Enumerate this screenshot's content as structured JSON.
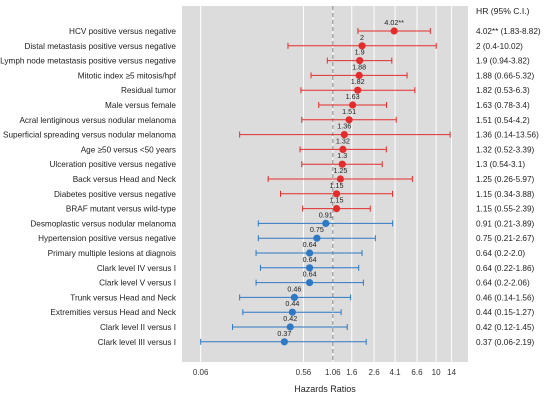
{
  "chart_data": {
    "type": "forest",
    "xlabel": "Hazards Ratios",
    "hr_header": "HR (95% C.I.)",
    "x_scale": "log",
    "xlim": [
      0.04,
      20
    ],
    "x_ticks": [
      0.06,
      0.56,
      1.06,
      1.6,
      2.6,
      4.1,
      6.6,
      10,
      14
    ],
    "x_tick_labels": [
      "0.06",
      "0.56",
      "1.06",
      "1.6",
      "2.6",
      "4.1",
      "6.6",
      "10",
      "14"
    ],
    "reference_line": 1.06,
    "grid": true,
    "colors": {
      "risk": "#e32c2c",
      "protective": "#2e78c4",
      "background": "#dcdcdc",
      "gridline": "#ffffff",
      "reference": "#999999"
    },
    "rows": [
      {
        "label": "HCV positive versus negative",
        "hr": 4.02,
        "hr_text": "4.02**",
        "lo": 1.83,
        "hi": 8.82,
        "ci_text": "4.02** (1.83-8.82)",
        "group": "risk"
      },
      {
        "label": "Distal metastasis positive versus negative",
        "hr": 2,
        "hr_text": "2",
        "lo": 0.4,
        "hi": 10.02,
        "ci_text": "2 (0.4-10.02)",
        "group": "risk"
      },
      {
        "label": "Lymph node metastasis positive versus negative",
        "hr": 1.9,
        "hr_text": "1.9",
        "lo": 0.94,
        "hi": 3.82,
        "ci_text": "1.9 (0.94-3.82)",
        "group": "risk"
      },
      {
        "label": "Mitotic index ≥5 mitosis/hpf",
        "hr": 1.88,
        "hr_text": "1.88",
        "lo": 0.66,
        "hi": 5.32,
        "ci_text": "1.88 (0.66-5.32)",
        "group": "risk"
      },
      {
        "label": "Residual tumor",
        "hr": 1.82,
        "hr_text": "1.82",
        "lo": 0.53,
        "hi": 6.3,
        "ci_text": "1.82 (0.53-6.3)",
        "group": "risk"
      },
      {
        "label": "Male versus female",
        "hr": 1.63,
        "hr_text": "1.63",
        "lo": 0.78,
        "hi": 3.4,
        "ci_text": "1.63 (0.78-3.4)",
        "group": "risk"
      },
      {
        "label": "Acral lentiginous versus nodular melanoma",
        "hr": 1.51,
        "hr_text": "1.51",
        "lo": 0.54,
        "hi": 4.2,
        "ci_text": "1.51 (0.54-4.2)",
        "group": "risk"
      },
      {
        "label": "Superficial spreading versus nodular melanoma",
        "hr": 1.36,
        "hr_text": "1.36",
        "lo": 0.14,
        "hi": 13.56,
        "ci_text": "1.36 (0.14-13.56)",
        "group": "risk"
      },
      {
        "label": "Age ≥50 versus <50 years",
        "hr": 1.32,
        "hr_text": "1.32",
        "lo": 0.52,
        "hi": 3.39,
        "ci_text": "1.32 (0.52-3.39)",
        "group": "risk"
      },
      {
        "label": "Ulceration positive versus negative",
        "hr": 1.3,
        "hr_text": "1.3",
        "lo": 0.54,
        "hi": 3.1,
        "ci_text": "1.3 (0.54-3.1)",
        "group": "risk"
      },
      {
        "label": "Back  versus Head and Neck",
        "hr": 1.25,
        "hr_text": "1.25",
        "lo": 0.26,
        "hi": 5.97,
        "ci_text": "1.25 (0.26-5.97)",
        "group": "risk"
      },
      {
        "label": "Diabetes positive versus negative",
        "hr": 1.15,
        "hr_text": "1.15",
        "lo": 0.34,
        "hi": 3.88,
        "ci_text": "1.15 (0.34-3.88)",
        "group": "risk"
      },
      {
        "label": "BRAF mutant versus wild-type",
        "hr": 1.15,
        "hr_text": "1.15",
        "lo": 0.55,
        "hi": 2.39,
        "ci_text": "1.15 (0.55-2.39)",
        "group": "risk"
      },
      {
        "label": "Desmoplastic versus nodular melanoma",
        "hr": 0.91,
        "hr_text": "0.91",
        "lo": 0.21,
        "hi": 3.89,
        "ci_text": "0.91 (0.21-3.89)",
        "group": "protective"
      },
      {
        "label": "Hypertension positive versus negative",
        "hr": 0.75,
        "hr_text": "0.75",
        "lo": 0.21,
        "hi": 2.67,
        "ci_text": "0.75 (0.21-2.67)",
        "group": "protective"
      },
      {
        "label": "Primary multiple lesions at diagnois",
        "hr": 0.64,
        "hr_text": "0.64",
        "lo": 0.2,
        "hi": 2.0,
        "ci_text": "0.64 (0.2-2.0)",
        "group": "protective"
      },
      {
        "label": "Clark level IV versus I",
        "hr": 0.64,
        "hr_text": "0.64",
        "lo": 0.22,
        "hi": 1.86,
        "ci_text": "0.64 (0.22-1.86)",
        "group": "protective"
      },
      {
        "label": "Clark level V versus I",
        "hr": 0.64,
        "hr_text": "0.64",
        "lo": 0.2,
        "hi": 2.06,
        "ci_text": "0.64 (0.2-2.06)",
        "group": "protective"
      },
      {
        "label": "Trunk  versus Head and Neck",
        "hr": 0.46,
        "hr_text": "0.46",
        "lo": 0.14,
        "hi": 1.56,
        "ci_text": "0.46 (0.14-1.56)",
        "group": "protective"
      },
      {
        "label": "Extremities versus Head and Neck",
        "hr": 0.44,
        "hr_text": "0.44",
        "lo": 0.15,
        "hi": 1.27,
        "ci_text": "0.44 (0.15-1.27)",
        "group": "protective"
      },
      {
        "label": "Clark level II versus I",
        "hr": 0.42,
        "hr_text": "0.42",
        "lo": 0.12,
        "hi": 1.45,
        "ci_text": "0.42 (0.12-1.45)",
        "group": "protective"
      },
      {
        "label": "Clark level III versus I",
        "hr": 0.37,
        "hr_text": "0.37",
        "lo": 0.06,
        "hi": 2.19,
        "ci_text": "0.37 (0.06-2.19)",
        "group": "protective"
      }
    ]
  }
}
